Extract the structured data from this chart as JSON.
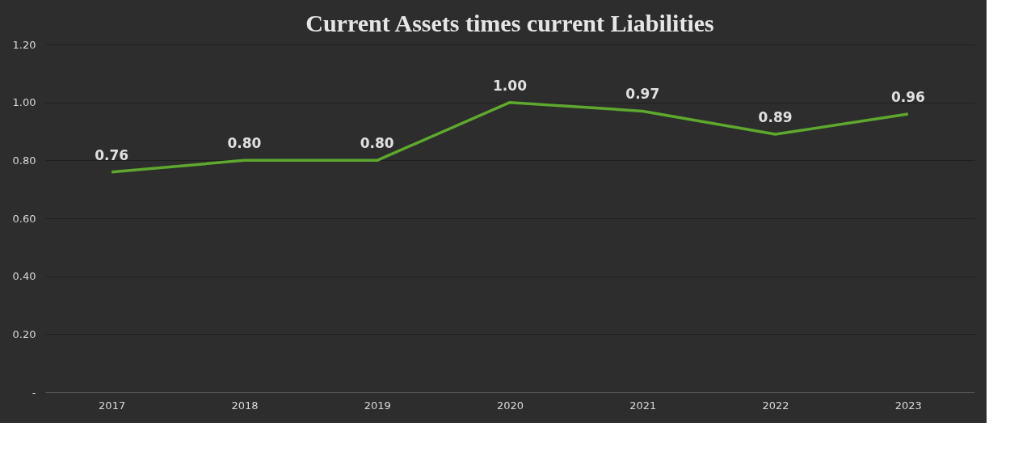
{
  "chart_data": {
    "type": "line",
    "title": "Current Assets times current Liabilities",
    "categories": [
      "2017",
      "2018",
      "2019",
      "2020",
      "2021",
      "2022",
      "2023"
    ],
    "series": [
      {
        "color": "#5ea82e",
        "values": [
          0.76,
          0.8,
          0.8,
          1.0,
          0.97,
          0.89,
          0.96
        ],
        "value_labels": [
          "0.76",
          "0.80",
          "0.80",
          "1.00",
          "0.97",
          "0.89",
          "0.96"
        ]
      }
    ],
    "ylim": [
      0,
      1.2
    ],
    "yticks": [
      {
        "value": 0,
        "label": "-"
      },
      {
        "value": 0.2,
        "label": "0.20"
      },
      {
        "value": 0.4,
        "label": "0.40"
      },
      {
        "value": 0.6,
        "label": "0.60"
      },
      {
        "value": 0.8,
        "label": "0.80"
      },
      {
        "value": 1.0,
        "label": "1.00"
      },
      {
        "value": 1.2,
        "label": "1.20"
      }
    ],
    "grid": "y",
    "marker": "none",
    "line_style": "solid"
  }
}
